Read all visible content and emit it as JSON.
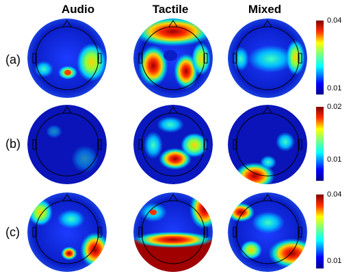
{
  "columns": [
    "Audio",
    "Tactile",
    "Mixed"
  ],
  "rows": [
    {
      "label": "(a)",
      "cbar_max": "0.04",
      "cbar_min": "0.01"
    },
    {
      "label": "(b)",
      "cbar_max": "0.02",
      "cbar_min": "0.01"
    },
    {
      "label": "(c)",
      "cbar_max": "0.04",
      "cbar_min": "0.01"
    }
  ],
  "colors": {
    "low": "#1a00b0",
    "mid": "#00c8ff",
    "high": "#a00000"
  }
}
